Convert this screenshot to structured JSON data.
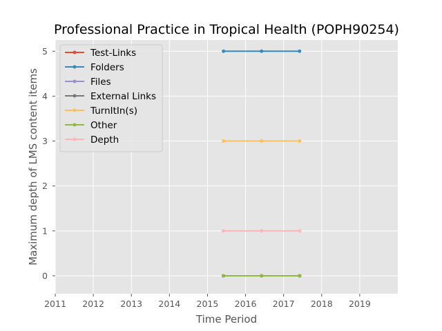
{
  "chart_data": {
    "type": "line",
    "title": "Professional Practice in Tropical Health (POPH90254)",
    "xlabel": "Time Period",
    "ylabel": "Maximum depth of LMS content items",
    "xlim": [
      2011,
      2020
    ],
    "ylim": [
      -0.4,
      5.25
    ],
    "xticks": [
      2011,
      2012,
      2013,
      2014,
      2015,
      2016,
      2017,
      2018,
      2019
    ],
    "yticks": [
      0,
      1,
      2,
      3,
      4,
      5
    ],
    "grid": true,
    "legend_position": "top-left",
    "x": [
      2015.42,
      2016.42,
      2017.42
    ],
    "series": [
      {
        "name": "Test-Links",
        "color": "#E24A33",
        "values": [
          0,
          0,
          0
        ]
      },
      {
        "name": "Folders",
        "color": "#348ABD",
        "values": [
          5,
          5,
          5
        ]
      },
      {
        "name": "Files",
        "color": "#988ED5",
        "values": [
          0,
          0,
          0
        ]
      },
      {
        "name": "External Links",
        "color": "#777777",
        "values": [
          0,
          0,
          0
        ]
      },
      {
        "name": "TurnItIn(s)",
        "color": "#FBC15E",
        "values": [
          3,
          3,
          3
        ]
      },
      {
        "name": "Other",
        "color": "#8EBA42",
        "values": [
          0,
          0,
          0
        ]
      },
      {
        "name": "Depth",
        "color": "#FFB5B8",
        "values": [
          1,
          1,
          1
        ]
      }
    ]
  }
}
